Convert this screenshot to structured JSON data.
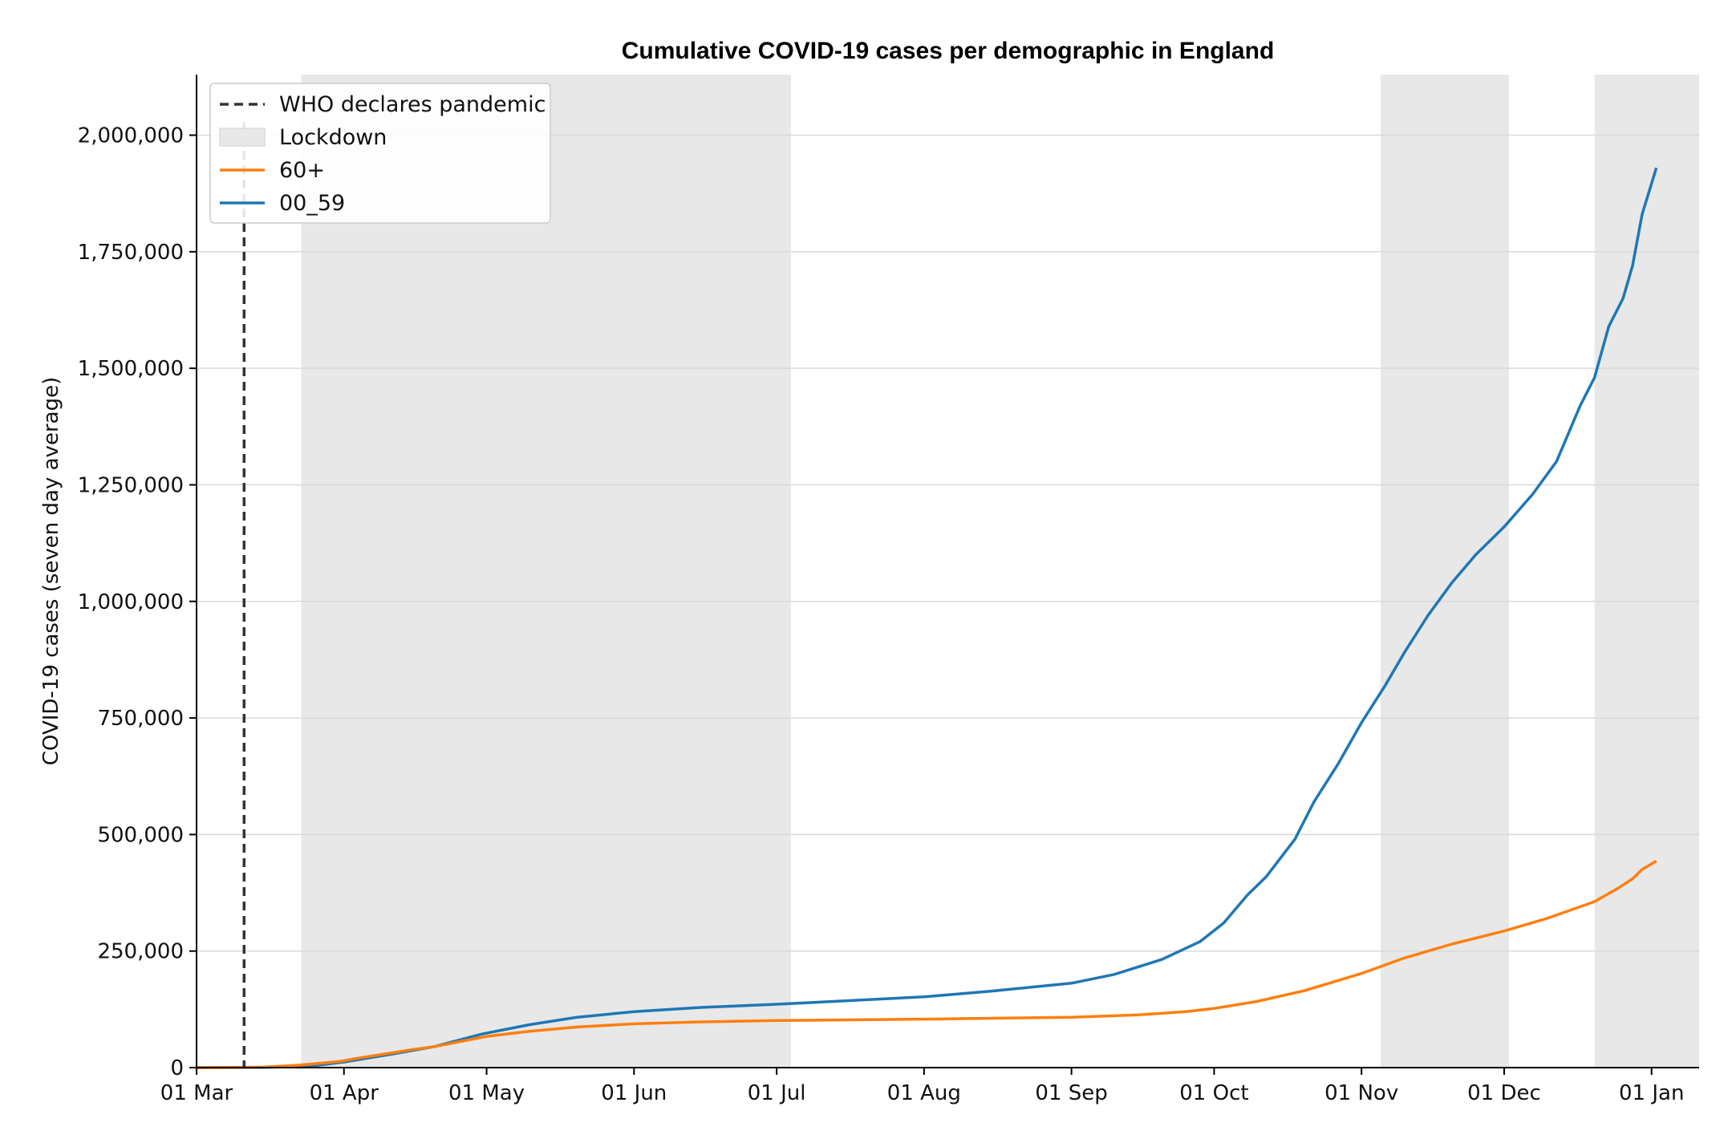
{
  "chart_data": {
    "type": "line",
    "title": "Cumulative COVID-19 cases per demographic in England",
    "xlabel": "",
    "ylabel": "COVID-19 cases (seven day average)",
    "x_range": [
      "2020-03-01",
      "2021-01-11"
    ],
    "ylim": [
      0,
      2130000
    ],
    "y_ticks": [
      0,
      250000,
      500000,
      750000,
      1000000,
      1250000,
      1500000,
      1750000,
      2000000
    ],
    "y_tick_labels": [
      "0",
      "250,000",
      "500,000",
      "750,000",
      "1,000,000",
      "1,250,000",
      "1,500,000",
      "1,750,000",
      "2,000,000"
    ],
    "x_ticks": [
      "2020-03-01",
      "2020-04-01",
      "2020-05-01",
      "2020-06-01",
      "2020-07-01",
      "2020-08-01",
      "2020-09-01",
      "2020-10-01",
      "2020-11-01",
      "2020-12-01",
      "2021-01-01"
    ],
    "x_tick_labels": [
      "01 Mar",
      "01 Apr",
      "01 May",
      "01 Jun",
      "01 Jul",
      "01 Aug",
      "01 Sep",
      "01 Oct",
      "01 Nov",
      "01 Dec",
      "01 Jan"
    ],
    "grid": "y",
    "legend_position": "top-left",
    "legend": [
      "WHO declares pandemic",
      "Lockdown",
      "60+",
      "00_59"
    ],
    "event_line": {
      "label": "WHO declares pandemic",
      "date": "2020-03-11",
      "color": "#333333"
    },
    "shaded_periods": [
      {
        "label": "Lockdown",
        "start": "2020-03-23",
        "end": "2020-07-04"
      },
      {
        "start": "2020-11-05",
        "end": "2020-12-02"
      },
      {
        "start": "2020-12-20",
        "end": "2021-01-11"
      }
    ],
    "shade_color": "#e8e8e8",
    "series": [
      {
        "name": "60+",
        "color": "#ff7f0e",
        "points": [
          [
            "2020-03-01",
            0
          ],
          [
            "2020-03-15",
            1000
          ],
          [
            "2020-03-22",
            5000
          ],
          [
            "2020-03-31",
            13000
          ],
          [
            "2020-04-05",
            22000
          ],
          [
            "2020-04-10",
            30000
          ],
          [
            "2020-04-15",
            38000
          ],
          [
            "2020-04-20",
            45000
          ],
          [
            "2020-04-25",
            55000
          ],
          [
            "2020-05-01",
            67000
          ],
          [
            "2020-05-10",
            78000
          ],
          [
            "2020-05-20",
            87000
          ],
          [
            "2020-06-01",
            94000
          ],
          [
            "2020-06-15",
            98000
          ],
          [
            "2020-07-01",
            101000
          ],
          [
            "2020-08-01",
            104000
          ],
          [
            "2020-09-01",
            108000
          ],
          [
            "2020-09-15",
            113000
          ],
          [
            "2020-09-25",
            120000
          ],
          [
            "2020-10-01",
            127000
          ],
          [
            "2020-10-10",
            142000
          ],
          [
            "2020-10-20",
            165000
          ],
          [
            "2020-11-01",
            202000
          ],
          [
            "2020-11-10",
            235000
          ],
          [
            "2020-11-20",
            265000
          ],
          [
            "2020-12-01",
            293000
          ],
          [
            "2020-12-10",
            320000
          ],
          [
            "2020-12-20",
            356000
          ],
          [
            "2020-12-25",
            385000
          ],
          [
            "2020-12-28",
            405000
          ],
          [
            "2020-12-30",
            425000
          ],
          [
            "2021-01-02",
            443000
          ]
        ]
      },
      {
        "name": "00_59",
        "color": "#1f77b4",
        "points": [
          [
            "2020-03-01",
            0
          ],
          [
            "2020-03-15",
            500
          ],
          [
            "2020-03-25",
            3000
          ],
          [
            "2020-04-01",
            12000
          ],
          [
            "2020-04-10",
            27000
          ],
          [
            "2020-04-20",
            45000
          ],
          [
            "2020-04-30",
            72000
          ],
          [
            "2020-05-10",
            92000
          ],
          [
            "2020-05-20",
            108000
          ],
          [
            "2020-06-01",
            120000
          ],
          [
            "2020-06-15",
            129000
          ],
          [
            "2020-07-01",
            136000
          ],
          [
            "2020-07-15",
            143000
          ],
          [
            "2020-08-01",
            152000
          ],
          [
            "2020-08-15",
            164000
          ],
          [
            "2020-09-01",
            181000
          ],
          [
            "2020-09-10",
            200000
          ],
          [
            "2020-09-20",
            232000
          ],
          [
            "2020-09-28",
            270000
          ],
          [
            "2020-10-03",
            310000
          ],
          [
            "2020-10-08",
            370000
          ],
          [
            "2020-10-12",
            410000
          ],
          [
            "2020-10-18",
            490000
          ],
          [
            "2020-10-22",
            570000
          ],
          [
            "2020-10-27",
            650000
          ],
          [
            "2020-11-01",
            740000
          ],
          [
            "2020-11-06",
            820000
          ],
          [
            "2020-11-10",
            890000
          ],
          [
            "2020-11-15",
            970000
          ],
          [
            "2020-11-20",
            1040000
          ],
          [
            "2020-11-25",
            1100000
          ],
          [
            "2020-12-01",
            1160000
          ],
          [
            "2020-12-07",
            1230000
          ],
          [
            "2020-12-12",
            1300000
          ],
          [
            "2020-12-17",
            1420000
          ],
          [
            "2020-12-20",
            1480000
          ],
          [
            "2020-12-23",
            1590000
          ],
          [
            "2020-12-26",
            1650000
          ],
          [
            "2020-12-28",
            1720000
          ],
          [
            "2020-12-30",
            1830000
          ],
          [
            "2021-01-02",
            1930000
          ]
        ]
      }
    ]
  }
}
